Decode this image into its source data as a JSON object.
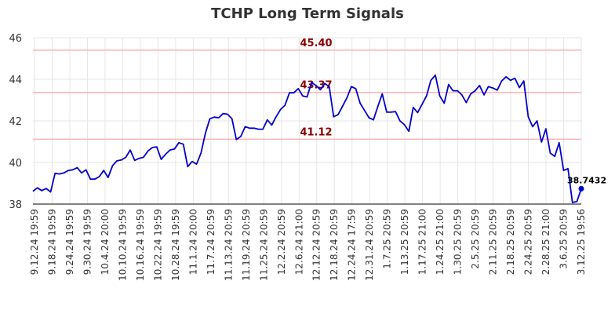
{
  "chart_data": {
    "type": "line",
    "title": "TCHP Long Term Signals",
    "xlabel": "",
    "ylabel": "",
    "ylim": [
      38,
      46
    ],
    "yticks": [
      38,
      40,
      42,
      44,
      46
    ],
    "grid": true,
    "line_color": "#0000cc",
    "ref_line_color": "#ffb3b3",
    "ref_label_color": "#8b0000",
    "reference_lines": [
      {
        "value": 45.4,
        "label": "45.40"
      },
      {
        "value": 43.37,
        "label": "43.37"
      },
      {
        "value": 41.12,
        "label": "41.12"
      }
    ],
    "xtick_labels": [
      "9.12.24 19:59",
      "9.18.24 19:59",
      "9.24.24 19:59",
      "9.30.24 19:59",
      "10.4.24 20:00",
      "10.10.24 19:59",
      "10.16.24 19:59",
      "10.22.24 19:59",
      "10.28.24 19:59",
      "11.1.24 20:00",
      "11.7.24 20:59",
      "11.13.24 20:59",
      "11.19.24 20:59",
      "11.25.24 20:59",
      "12.2.24 20:59",
      "12.6.24 21:00",
      "12.12.24 20:59",
      "12.18.24 20:59",
      "12.24.24 17:59",
      "12.31.24 20:59",
      "1.7.25 20:59",
      "1.13.25 20:59",
      "1.17.25 21:00",
      "1.24.25 21:00",
      "1.30.25 20:59",
      "2.5.25 20:59",
      "2.11.25 20:59",
      "2.18.25 20:59",
      "2.24.25 20:59",
      "2.28.25 21:00",
      "3.6.25 20:59",
      "3.12.25 19:56"
    ],
    "values": [
      38.62,
      38.78,
      38.65,
      38.75,
      38.58,
      39.48,
      39.45,
      39.5,
      39.62,
      39.65,
      39.75,
      39.5,
      39.65,
      39.2,
      39.2,
      39.32,
      39.62,
      39.28,
      39.85,
      40.08,
      40.12,
      40.25,
      40.6,
      40.1,
      40.2,
      40.25,
      40.55,
      40.72,
      40.75,
      40.15,
      40.4,
      40.6,
      40.65,
      40.95,
      40.88,
      39.8,
      40.05,
      39.92,
      40.45,
      41.4,
      42.1,
      42.18,
      42.15,
      42.35,
      42.32,
      42.1,
      41.1,
      41.25,
      41.72,
      41.65,
      41.65,
      41.6,
      41.6,
      42.05,
      41.8,
      42.2,
      42.55,
      42.75,
      43.35,
      43.35,
      43.55,
      43.2,
      43.15,
      43.85,
      43.7,
      43.5,
      43.8,
      43.65,
      42.2,
      42.3,
      42.7,
      43.1,
      43.65,
      43.55,
      42.85,
      42.5,
      42.15,
      42.05,
      42.7,
      43.3,
      42.42,
      42.42,
      42.45,
      42.0,
      41.82,
      41.5,
      42.65,
      42.4,
      42.8,
      43.2,
      43.95,
      44.2,
      43.2,
      42.85,
      43.75,
      43.45,
      43.45,
      43.25,
      42.88,
      43.3,
      43.45,
      43.7,
      43.25,
      43.65,
      43.58,
      43.48,
      43.92,
      44.12,
      43.95,
      44.05,
      43.6,
      43.92,
      42.2,
      41.72,
      42.0,
      40.98,
      41.62,
      40.45,
      40.3,
      40.95,
      39.62,
      39.7,
      38.08,
      38.12,
      38.74
    ],
    "last_value_label": "38.7432"
  }
}
